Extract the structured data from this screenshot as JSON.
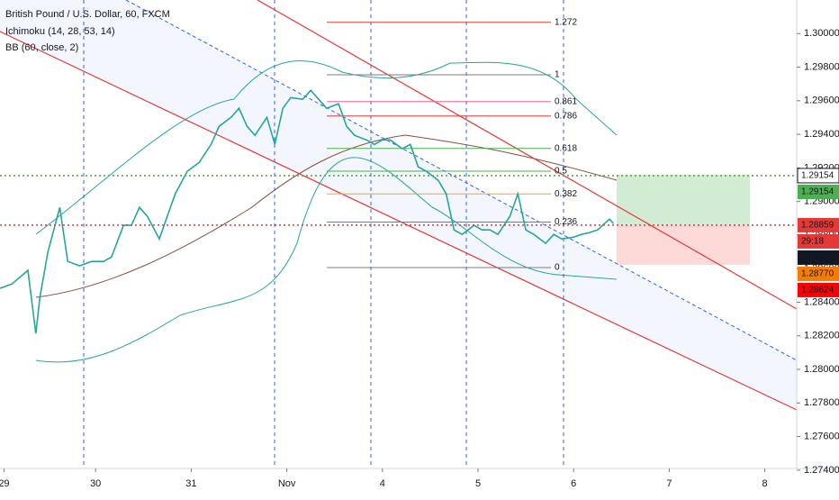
{
  "chart_data": {
    "type": "line",
    "title": "British Pound / U.S. Dollar, 60, FXCM",
    "indicators": [
      "Ichimoku (14, 28, 53, 14)",
      "BB (60, close, 2)"
    ],
    "x": [
      0,
      3,
      7,
      9,
      10,
      12,
      15,
      17,
      20,
      23,
      26,
      28,
      31,
      33,
      35,
      37,
      40,
      42,
      44,
      47,
      50,
      53,
      55,
      58,
      60,
      62,
      64,
      67,
      69,
      71,
      73,
      76,
      78,
      80,
      82,
      85,
      87,
      89,
      92,
      94,
      96,
      98,
      101,
      103,
      105,
      107,
      110,
      112,
      114,
      116,
      119,
      121,
      123,
      125,
      128,
      130,
      132,
      134,
      137,
      139,
      141,
      144,
      146,
      148,
      150,
      153,
      154
    ],
    "series": [
      {
        "color": "#26a69a",
        "values": [
          1.28483,
          1.28509,
          1.2859,
          1.28214,
          1.28429,
          1.28697,
          1.28965,
          1.28643,
          1.28617,
          1.28643,
          1.28643,
          1.2867,
          1.28858,
          1.28858,
          1.28965,
          1.28912,
          1.28777,
          1.28912,
          1.29046,
          1.2918,
          1.29233,
          1.2934,
          1.29448,
          1.29501,
          1.29555,
          1.29448,
          1.29394,
          1.29501,
          1.2934,
          1.29555,
          1.29619,
          1.29609,
          1.29662,
          1.29609,
          1.29555,
          1.29582,
          1.29448,
          1.29394,
          1.29367,
          1.2934,
          1.29367,
          1.29367,
          1.29314,
          1.2934,
          1.29206,
          1.2918,
          1.29126,
          1.29046,
          1.28831,
          1.28804,
          1.28858,
          1.28831,
          1.28831,
          1.28804,
          1.28912,
          1.29046,
          1.28831,
          1.28804,
          1.28751,
          1.28804,
          1.28777,
          1.28788,
          1.28804,
          1.28815,
          1.28831,
          1.28895,
          1.28869
        ]
      }
    ],
    "xlim": [
      0,
      200
    ],
    "xticks": [
      {
        "value": 1,
        "label": "29"
      },
      {
        "value": 24,
        "label": "30"
      },
      {
        "value": 48,
        "label": "31"
      },
      {
        "value": 72,
        "label": "Nov"
      },
      {
        "value": 96,
        "label": "4"
      },
      {
        "value": 120,
        "label": "5"
      },
      {
        "value": 144,
        "label": "6"
      },
      {
        "value": 168,
        "label": "7"
      },
      {
        "value": 192,
        "label": "8"
      }
    ],
    "ylim": [
      1.2741,
      1.302
    ],
    "yticks": [
      {
        "value": 1.274,
        "label": "1.27400"
      },
      {
        "value": 1.276,
        "label": "1.27600"
      },
      {
        "value": 1.278,
        "label": "1.27800"
      },
      {
        "value": 1.28,
        "label": "1.28000"
      },
      {
        "value": 1.282,
        "label": "1.28200"
      },
      {
        "value": 1.284,
        "label": "1.28400"
      },
      {
        "value": 1.286,
        "label": "1.28600"
      },
      {
        "value": 1.288,
        "label": "1.28800"
      },
      {
        "value": 1.29,
        "label": "1.29000"
      },
      {
        "value": 1.292,
        "label": "1.29200"
      },
      {
        "value": 1.294,
        "label": "1.29400"
      },
      {
        "value": 1.296,
        "label": "1.29600"
      },
      {
        "value": 1.298,
        "label": "1.29800"
      },
      {
        "value": 1.3,
        "label": "1.30000"
      }
    ],
    "fib_levels": [
      1.272,
      1,
      0.861,
      0.786,
      0.618,
      0.5,
      0.382,
      0.236,
      0
    ],
    "fib_colors": [
      "#e53935",
      "#787b86",
      "#f06292",
      "#e53935",
      "#4caf50",
      "#4caf50",
      "#f5a623",
      "#787b86",
      "#787b86"
    ],
    "price_labels": [
      {
        "value": 1.29154,
        "label": "1.29154",
        "color": "#ffffff"
      },
      {
        "value": 1.29154,
        "label": "1.29154",
        "color": "#4caf50"
      },
      {
        "value": 1.28859,
        "label": "1.28859",
        "color": "#e53935"
      },
      {
        "label": "29:18",
        "color": "#e53935"
      },
      {
        "value": 1.28849,
        "label": "1.28849",
        "color": "#131722"
      },
      {
        "value": 1.2877,
        "label": "1.28770",
        "color": "#f57c00"
      },
      {
        "value": 1.28624,
        "label": "1.28624",
        "color": "#ff0000"
      }
    ]
  }
}
